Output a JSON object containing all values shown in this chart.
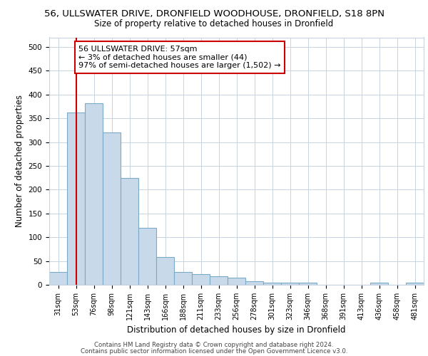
{
  "title_line1": "56, ULLSWATER DRIVE, DRONFIELD WOODHOUSE, DRONFIELD, S18 8PN",
  "title_line2": "Size of property relative to detached houses in Dronfield",
  "xlabel": "Distribution of detached houses by size in Dronfield",
  "ylabel": "Number of detached properties",
  "categories": [
    "31sqm",
    "53sqm",
    "76sqm",
    "98sqm",
    "121sqm",
    "143sqm",
    "166sqm",
    "188sqm",
    "211sqm",
    "233sqm",
    "256sqm",
    "278sqm",
    "301sqm",
    "323sqm",
    "346sqm",
    "368sqm",
    "391sqm",
    "413sqm",
    "436sqm",
    "458sqm",
    "481sqm"
  ],
  "values": [
    27,
    362,
    381,
    320,
    225,
    120,
    58,
    27,
    22,
    18,
    15,
    7,
    5,
    5,
    4,
    0,
    0,
    0,
    5,
    0,
    5
  ],
  "bar_color": "#c8daea",
  "bar_edge_color": "#7aaac8",
  "vline_x": 1,
  "vline_color": "#cc0000",
  "annotation_text": "56 ULLSWATER DRIVE: 57sqm\n← 3% of detached houses are smaller (44)\n97% of semi-detached houses are larger (1,502) →",
  "annotation_box_color": "#ffffff",
  "annotation_border_color": "#cc0000",
  "ylim": [
    0,
    520
  ],
  "yticks": [
    0,
    50,
    100,
    150,
    200,
    250,
    300,
    350,
    400,
    450,
    500
  ],
  "footer_line1": "Contains HM Land Registry data © Crown copyright and database right 2024.",
  "footer_line2": "Contains public sector information licensed under the Open Government Licence v3.0.",
  "bg_color": "#ffffff",
  "plot_bg_color": "#ffffff",
  "grid_color": "#c8d4e0"
}
